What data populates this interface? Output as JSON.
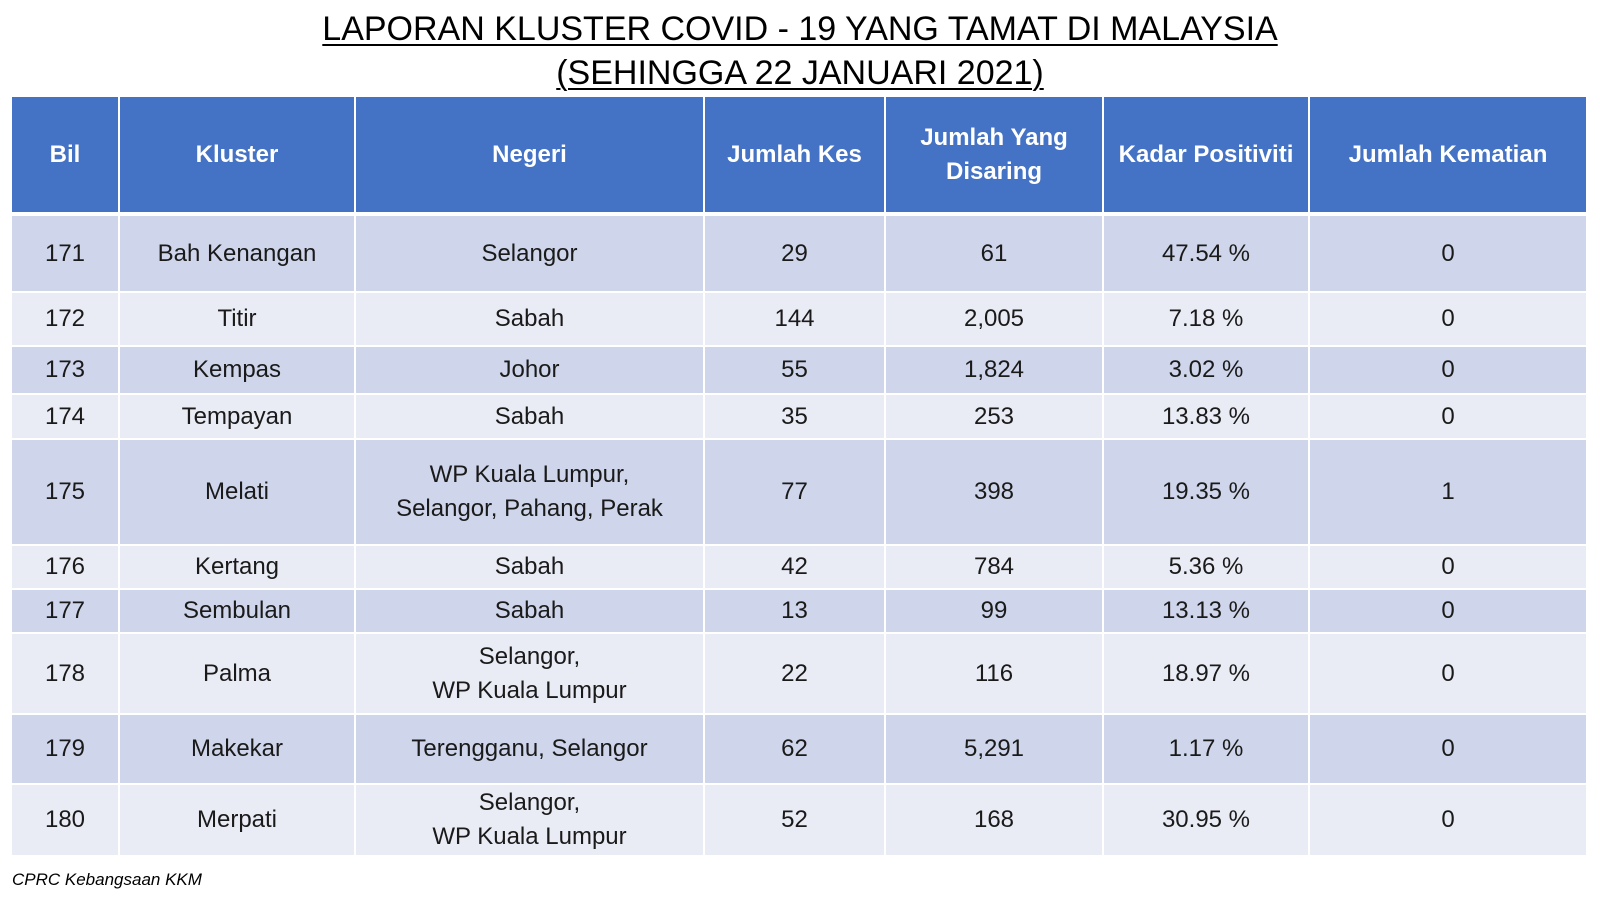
{
  "chart_data": {
    "type": "table",
    "title": "LAPORAN KLUSTER COVID - 19 YANG TAMAT DI MALAYSIA",
    "subtitle": "(SEHINGGA 22 JANUARI 2021)",
    "columns": [
      "Bil",
      "Kluster",
      "Negeri",
      "Jumlah Kes",
      "Jumlah Yang Disaring",
      "Kadar Positiviti",
      "Jumlah Kematian"
    ],
    "rows": [
      {
        "bil": "171",
        "kluster": "Bah Kenangan",
        "negeri": [
          "Selangor"
        ],
        "jumlah_kes": "29",
        "jumlah_disaring": "61",
        "kadar_positiviti": "47.54 %",
        "jumlah_kematian": "0"
      },
      {
        "bil": "172",
        "kluster": "Titir",
        "negeri": [
          "Sabah"
        ],
        "jumlah_kes": "144",
        "jumlah_disaring": "2,005",
        "kadar_positiviti": "7.18 %",
        "jumlah_kematian": "0"
      },
      {
        "bil": "173",
        "kluster": "Kempas",
        "negeri": [
          "Johor"
        ],
        "jumlah_kes": "55",
        "jumlah_disaring": "1,824",
        "kadar_positiviti": "3.02 %",
        "jumlah_kematian": "0"
      },
      {
        "bil": "174",
        "kluster": "Tempayan",
        "negeri": [
          "Sabah"
        ],
        "jumlah_kes": "35",
        "jumlah_disaring": "253",
        "kadar_positiviti": "13.83 %",
        "jumlah_kematian": "0"
      },
      {
        "bil": "175",
        "kluster": "Melati",
        "negeri": [
          "WP Kuala Lumpur,",
          "Selangor, Pahang, Perak"
        ],
        "jumlah_kes": "77",
        "jumlah_disaring": "398",
        "kadar_positiviti": "19.35 %",
        "jumlah_kematian": "1"
      },
      {
        "bil": "176",
        "kluster": "Kertang",
        "negeri": [
          "Sabah"
        ],
        "jumlah_kes": "42",
        "jumlah_disaring": "784",
        "kadar_positiviti": "5.36 %",
        "jumlah_kematian": "0"
      },
      {
        "bil": "177",
        "kluster": "Sembulan",
        "negeri": [
          "Sabah"
        ],
        "jumlah_kes": "13",
        "jumlah_disaring": "99",
        "kadar_positiviti": "13.13 %",
        "jumlah_kematian": "0"
      },
      {
        "bil": "178",
        "kluster": "Palma",
        "negeri": [
          "Selangor,",
          "WP Kuala Lumpur"
        ],
        "jumlah_kes": "22",
        "jumlah_disaring": "116",
        "kadar_positiviti": "18.97 %",
        "jumlah_kematian": "0"
      },
      {
        "bil": "179",
        "kluster": "Makekar",
        "negeri": [
          "Terengganu, Selangor"
        ],
        "jumlah_kes": "62",
        "jumlah_disaring": "5,291",
        "kadar_positiviti": "1.17 %",
        "jumlah_kematian": "0"
      },
      {
        "bil": "180",
        "kluster": "Merpati",
        "negeri": [
          "Selangor,",
          "WP Kuala Lumpur"
        ],
        "jumlah_kes": "52",
        "jumlah_disaring": "168",
        "kadar_positiviti": "30.95 %",
        "jumlah_kematian": "0"
      }
    ],
    "source": "CPRC Kebangsaan KKM"
  },
  "colors": {
    "header_bg": "#4472C4",
    "header_text": "#FFFFFF",
    "row_dark": "#CFD5EA",
    "row_light": "#E9EBF5",
    "text": "#1A1A1A",
    "grid_line": "#FFFFFF"
  }
}
